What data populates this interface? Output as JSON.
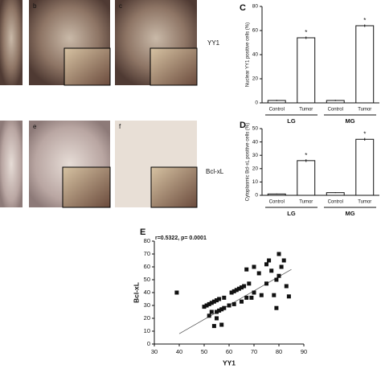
{
  "micrographs": {
    "panel_labels": [
      "b",
      "c",
      "e",
      "f"
    ],
    "row_labels": [
      "YY1",
      "Bcl-xL"
    ]
  },
  "chart_data": [
    {
      "type": "bar",
      "panel": "C",
      "ylabel": "Nuclear YY1 positive cells (%)",
      "categories": [
        "Control",
        "Tumor",
        "Control",
        "Tumor"
      ],
      "groups": [
        "LG",
        "MG"
      ],
      "values": [
        2,
        54,
        2,
        64
      ],
      "errors": [
        0.5,
        1,
        0.5,
        1
      ],
      "annotations": [
        null,
        "*",
        null,
        "*"
      ],
      "color": "#ffffff",
      "ylim": [
        0,
        80
      ],
      "yticks": [
        0,
        20,
        40,
        60,
        80
      ]
    },
    {
      "type": "bar",
      "panel": "D",
      "ylabel": "Cytoplasmic Bcl-xL positive cells (%)",
      "categories": [
        "Control",
        "Tumor",
        "Control",
        "Tumor"
      ],
      "groups": [
        "LG",
        "MG"
      ],
      "values": [
        1,
        26,
        2,
        42
      ],
      "errors": [
        0.3,
        1,
        0.3,
        1
      ],
      "annotations": [
        null,
        "*",
        null,
        "*"
      ],
      "color": "#ffffff",
      "ylim": [
        0,
        50
      ],
      "yticks": [
        0,
        10,
        20,
        30,
        40,
        50
      ]
    },
    {
      "type": "scatter",
      "panel": "E",
      "annotation": "r=0.5322, p= 0.0001",
      "xlabel": "YY1",
      "ylabel": "Bcl-xL",
      "x": [
        39,
        50,
        51,
        52,
        52,
        53,
        53,
        54,
        54,
        55,
        55,
        55,
        56,
        56,
        57,
        57,
        58,
        58,
        60,
        61,
        62,
        62,
        63,
        64,
        65,
        65,
        66,
        67,
        67,
        68,
        69,
        70,
        70,
        72,
        73,
        75,
        75,
        76,
        77,
        78,
        79,
        79,
        80,
        80,
        81,
        82,
        83,
        84
      ],
      "values": [
        40,
        29,
        30,
        31,
        22,
        32,
        25,
        33,
        14,
        34,
        25,
        20,
        26,
        35,
        27,
        15,
        36,
        28,
        30,
        40,
        41,
        31,
        42,
        43,
        44,
        33,
        45,
        58,
        36,
        47,
        36,
        60,
        40,
        55,
        38,
        62,
        47,
        65,
        57,
        38,
        50,
        28,
        70,
        53,
        60,
        65,
        45,
        37
      ],
      "trendline": {
        "x": [
          40,
          85
        ],
        "values": [
          8,
          58
        ]
      },
      "color": "#111111",
      "xlim": [
        30,
        90
      ],
      "xticks": [
        30,
        40,
        50,
        60,
        70,
        80,
        90
      ],
      "ylim": [
        0,
        80
      ],
      "yticks": [
        0,
        10,
        20,
        30,
        40,
        50,
        60,
        70,
        80
      ]
    }
  ]
}
